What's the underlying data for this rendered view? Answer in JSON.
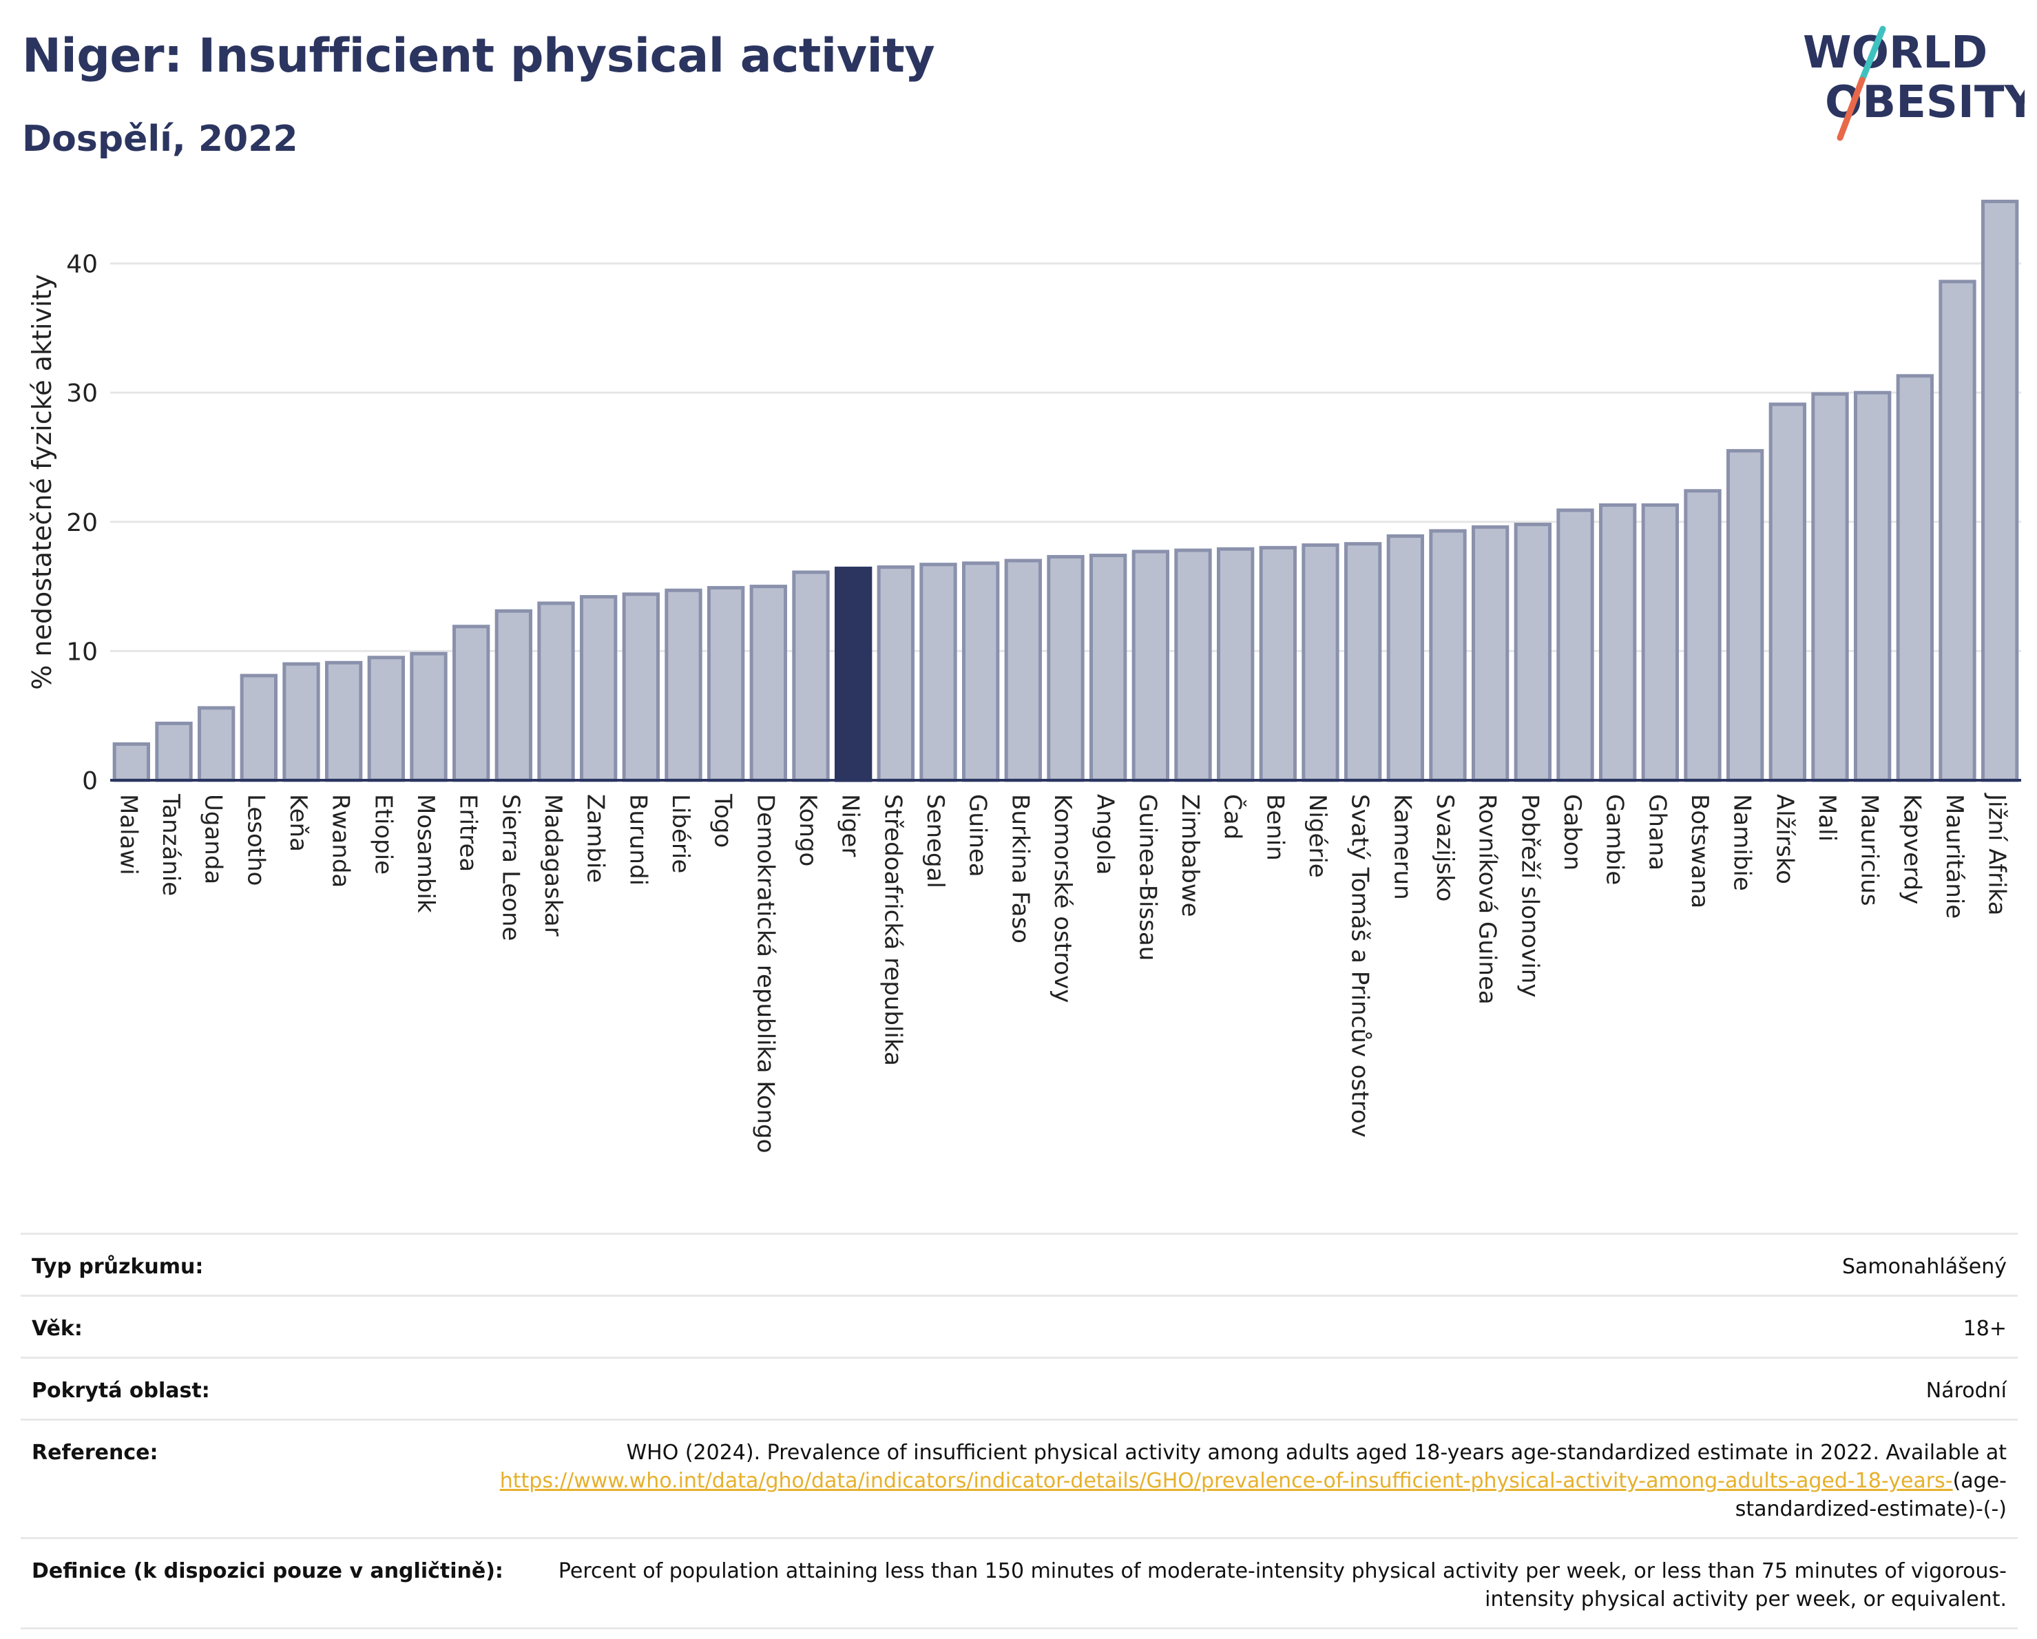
{
  "header": {
    "title": "Niger: Insufficient physical activity",
    "subtitle": "Dospělí, 2022"
  },
  "logo": {
    "line1": "WORLD",
    "line2": "OBESITY",
    "icon": "world-obesity-logo"
  },
  "colors": {
    "bar": "#babfcf",
    "bar_stroke": "#8a91ac",
    "highlight": "#2b3560",
    "title": "#2b3560",
    "grid": "#e6e6e6",
    "link": "#e6b02b",
    "logo_slash_teal": "#3fc1c0",
    "logo_slash_red": "#e8684a"
  },
  "chart_data": {
    "type": "bar",
    "ylabel": "% nedostatečné fyzické aktivity",
    "ylim": [
      0,
      46
    ],
    "yticks": [
      0,
      10,
      20,
      30,
      40
    ],
    "grid": true,
    "highlight": "Niger",
    "categories": [
      "Malawi",
      "Tanzánie",
      "Uganda",
      "Lesotho",
      "Keňa",
      "Rwanda",
      "Etiopie",
      "Mosambik",
      "Eritrea",
      "Sierra Leone",
      "Madagaskar",
      "Zambie",
      "Burundi",
      "Libérie",
      "Togo",
      "Demokratická republika Kongo",
      "Kongo",
      "Niger",
      "Středoafrická republika",
      "Senegal",
      "Guinea",
      "Burkina Faso",
      "Komorské ostrovy",
      "Angola",
      "Guinea-Bissau",
      "Zimbabwe",
      "Čad",
      "Benin",
      "Nigérie",
      "Svatý Tomáš a Princův ostrov",
      "Kamerun",
      "Svazijsko",
      "Rovníková Guinea",
      "Pobřeží slonoviny",
      "Gabon",
      "Gambie",
      "Ghana",
      "Botswana",
      "Namibie",
      "Alžírsko",
      "Mali",
      "Mauricius",
      "Kapverdy",
      "Mauritánie",
      "Jižní Afrika"
    ],
    "values": [
      2.8,
      4.4,
      5.6,
      8.1,
      9.0,
      9.1,
      9.5,
      9.8,
      11.9,
      13.1,
      13.7,
      14.2,
      14.4,
      14.7,
      14.9,
      15.0,
      16.1,
      16.4,
      16.5,
      16.7,
      16.8,
      17.0,
      17.3,
      17.4,
      17.7,
      17.8,
      17.9,
      18.0,
      18.2,
      18.3,
      18.9,
      19.3,
      19.6,
      19.8,
      20.9,
      21.3,
      21.3,
      22.4,
      25.5,
      29.1,
      29.9,
      30.0,
      31.3,
      38.6,
      44.8
    ]
  },
  "info": {
    "survey_type_label": "Typ průzkumu:",
    "survey_type_value": "Samonahlášený",
    "age_label": "Věk:",
    "age_value": "18+",
    "area_label": "Pokrytá oblast:",
    "area_value": "Národní",
    "reference_label": "Reference:",
    "reference_text": "WHO (2024). Prevalence of insufficient physical activity among adults aged 18-years age-standardized estimate in 2022. Available at",
    "reference_link": "https://www.who.int/data/gho/data/indicators/indicator-details/GHO/prevalence-of-insufficient-physical-activity-among-adults-aged-18-years-",
    "reference_suffix": "(age-standardized-estimate)-(-)",
    "definition_label": "Definice (k dispozici pouze v angličtině):",
    "definition_value": "Percent of population attaining less than 150 minutes of moderate-intensity physical activity per week, or less than 75 minutes of vigorous-intensity physical activity per week, or equivalent."
  }
}
